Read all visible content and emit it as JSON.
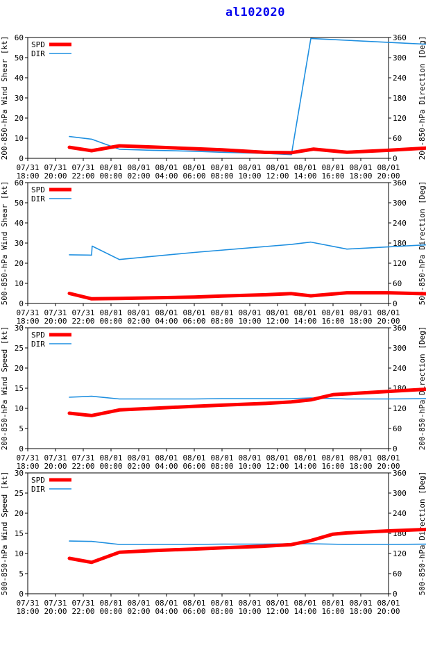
{
  "title": "al102020",
  "x_tick_labels": [
    [
      "07/31",
      "18:00"
    ],
    [
      "07/31",
      "20:00"
    ],
    [
      "07/31",
      "22:00"
    ],
    [
      "08/01",
      "00:00"
    ],
    [
      "08/01",
      "02:00"
    ],
    [
      "08/01",
      "04:00"
    ],
    [
      "08/01",
      "06:00"
    ],
    [
      "08/01",
      "08:00"
    ],
    [
      "08/01",
      "10:00"
    ],
    [
      "08/01",
      "12:00"
    ],
    [
      "08/01",
      "14:00"
    ],
    [
      "08/01",
      "16:00"
    ],
    [
      "08/01",
      "18:00"
    ],
    [
      "08/01",
      "20:00"
    ]
  ],
  "colors": {
    "spd": "#ff0000",
    "dir": "#1e8fe0"
  },
  "chart_data": [
    {
      "type": "line",
      "ylabel": "200-850-hPa Wind Shear [kt]",
      "y2label": "200-850-hPa Direction [Deg]",
      "ylim": [
        0,
        60
      ],
      "y2lim": [
        0,
        360
      ],
      "yticks": [
        0,
        10,
        20,
        30,
        40,
        50,
        60
      ],
      "y2ticks": [
        0,
        60,
        120,
        180,
        240,
        300,
        360
      ],
      "legend": "top-left",
      "series": [
        {
          "name": "SPD",
          "axis": "left",
          "points": [
            [
              1.5,
              5.5
            ],
            [
              2.3,
              3.8
            ],
            [
              3.3,
              6.2
            ],
            [
              4.5,
              5.6
            ],
            [
              6,
              4.8
            ],
            [
              7,
              4.2
            ],
            [
              8.5,
              3.0
            ],
            [
              9.5,
              2.8
            ],
            [
              10.3,
              4.6
            ],
            [
              11.5,
              3.0
            ],
            [
              13,
              4.0
            ],
            [
              14.5,
              5.2
            ],
            [
              16,
              6.4
            ]
          ]
        },
        {
          "name": "DIR",
          "axis": "right",
          "points": [
            [
              1.5,
              65
            ],
            [
              2.3,
              57
            ],
            [
              3.3,
              27
            ],
            [
              4.5,
              24
            ],
            [
              6,
              21
            ],
            [
              7,
              18
            ],
            [
              8.5,
              15
            ],
            [
              9.5,
              11
            ],
            [
              10.2,
              357
            ],
            [
              16,
              333
            ]
          ]
        }
      ]
    },
    {
      "type": "line",
      "ylabel": "500-850-hPa Wind Shear [kt]",
      "y2label": "500-850-hPa Direction [Deg]",
      "ylim": [
        0,
        60
      ],
      "y2lim": [
        0,
        360
      ],
      "yticks": [
        0,
        10,
        20,
        30,
        40,
        50,
        60
      ],
      "y2ticks": [
        0,
        60,
        120,
        180,
        240,
        300,
        360
      ],
      "legend": "top-left",
      "series": [
        {
          "name": "SPD",
          "axis": "left",
          "points": [
            [
              1.5,
              5.0
            ],
            [
              2.3,
              2.3
            ],
            [
              3.3,
              2.5
            ],
            [
              4.5,
              2.8
            ],
            [
              6,
              3.2
            ],
            [
              7,
              3.7
            ],
            [
              8.5,
              4.3
            ],
            [
              9.5,
              4.9
            ],
            [
              10.2,
              3.8
            ],
            [
              11.5,
              5.3
            ],
            [
              13,
              5.3
            ],
            [
              14.5,
              4.8
            ],
            [
              16,
              4.8
            ]
          ]
        },
        {
          "name": "DIR",
          "axis": "right",
          "points": [
            [
              1.5,
              145
            ],
            [
              2.3,
              144
            ],
            [
              2.32,
              171
            ],
            [
              3.3,
              131
            ],
            [
              6,
              152
            ],
            [
              9.5,
              176
            ],
            [
              10.2,
              183
            ],
            [
              11.5,
              162
            ],
            [
              16,
              182
            ]
          ]
        }
      ]
    },
    {
      "type": "line",
      "ylabel": "200-850-hPa Wind Speed [kt]",
      "y2label": "200-850-hPa Direction [Deg]",
      "ylim": [
        0,
        30
      ],
      "y2lim": [
        0,
        360
      ],
      "yticks": [
        0,
        5,
        10,
        15,
        20,
        25,
        30
      ],
      "y2ticks": [
        0,
        60,
        120,
        180,
        240,
        300,
        360
      ],
      "legend": "top-left",
      "series": [
        {
          "name": "SPD",
          "axis": "left",
          "points": [
            [
              1.5,
              8.8
            ],
            [
              2.3,
              8.2
            ],
            [
              3.3,
              9.6
            ],
            [
              4.5,
              10.0
            ],
            [
              6,
              10.5
            ],
            [
              7,
              10.8
            ],
            [
              8.5,
              11.2
            ],
            [
              9.5,
              11.6
            ],
            [
              10.2,
              12.1
            ],
            [
              11.0,
              13.4
            ],
            [
              11.5,
              13.6
            ],
            [
              13,
              14.2
            ],
            [
              14.5,
              14.8
            ],
            [
              16,
              15.4
            ]
          ]
        },
        {
          "name": "DIR",
          "axis": "right",
          "points": [
            [
              1.5,
              153
            ],
            [
              2.3,
              156
            ],
            [
              3.3,
              148
            ],
            [
              4.5,
              148
            ],
            [
              6,
              148
            ],
            [
              7,
              149
            ],
            [
              8.5,
              149
            ],
            [
              9.5,
              149
            ],
            [
              10.2,
              151
            ],
            [
              11.5,
              148
            ],
            [
              13,
              148
            ],
            [
              14.5,
              149
            ],
            [
              16,
              149
            ]
          ]
        }
      ]
    },
    {
      "type": "line",
      "ylabel": "500-850-hPa Wind Speed [kt]",
      "y2label": "500-850-hPa Direction [Deg]",
      "ylim": [
        0,
        30
      ],
      "y2lim": [
        0,
        360
      ],
      "yticks": [
        0,
        5,
        10,
        15,
        20,
        25,
        30
      ],
      "y2ticks": [
        0,
        60,
        120,
        180,
        240,
        300,
        360
      ],
      "legend": "top-left",
      "series": [
        {
          "name": "SPD",
          "axis": "left",
          "points": [
            [
              1.5,
              8.8
            ],
            [
              2.3,
              7.8
            ],
            [
              3.3,
              10.3
            ],
            [
              4.5,
              10.7
            ],
            [
              6,
              11.1
            ],
            [
              7,
              11.4
            ],
            [
              8.5,
              11.8
            ],
            [
              9.5,
              12.2
            ],
            [
              10.2,
              13.2
            ],
            [
              11.0,
              14.8
            ],
            [
              11.5,
              15.1
            ],
            [
              13,
              15.6
            ],
            [
              14.5,
              16.0
            ],
            [
              16,
              16.5
            ]
          ]
        },
        {
          "name": "DIR",
          "axis": "right",
          "points": [
            [
              1.5,
              157
            ],
            [
              2.3,
              156
            ],
            [
              3.3,
              147
            ],
            [
              4.5,
              147
            ],
            [
              6,
              147
            ],
            [
              7,
              148
            ],
            [
              8.5,
              148
            ],
            [
              9.5,
              149
            ],
            [
              10.2,
              149
            ],
            [
              11.5,
              147
            ],
            [
              13,
              147
            ],
            [
              14.5,
              148
            ],
            [
              16,
              148
            ]
          ]
        }
      ]
    }
  ]
}
